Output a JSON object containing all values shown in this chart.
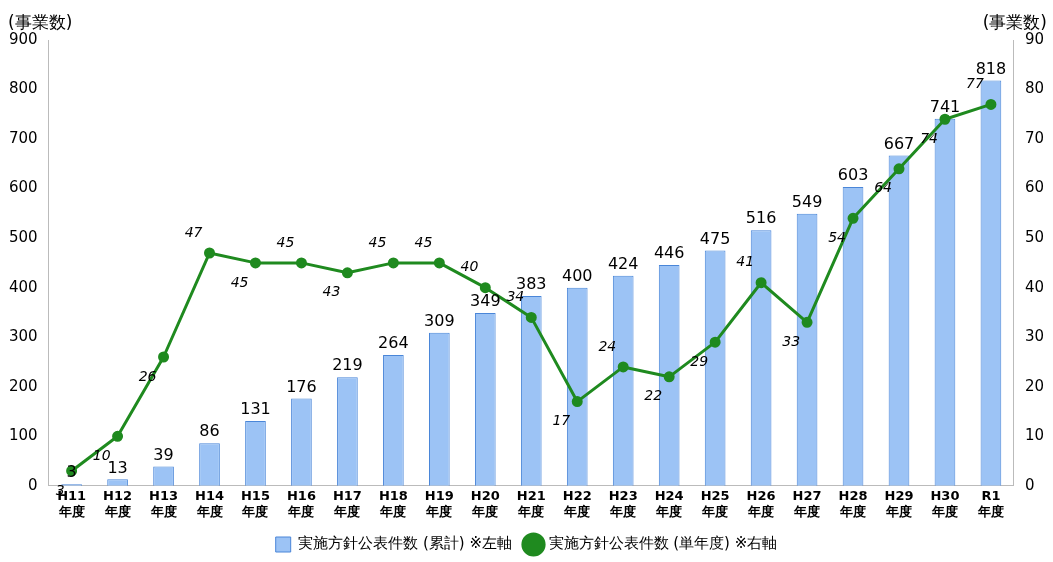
{
  "chart_data": {
    "type": "bar",
    "ylabel": "(事業数)",
    "y2label": "(事業数)",
    "categories": [
      "H11\n年度",
      "H12\n年度",
      "H13\n年度",
      "H14\n年度",
      "H15\n年度",
      "H16\n年度",
      "H17\n年度",
      "H18\n年度",
      "H19\n年度",
      "H20\n年度",
      "H21\n年度",
      "H22\n年度",
      "H23\n年度",
      "H24\n年度",
      "H25\n年度",
      "H26\n年度",
      "H27\n年度",
      "H28\n年度",
      "H29\n年度",
      "H30\n年度",
      "R1\n年度"
    ],
    "series": [
      {
        "name": "実施方針公表件数 (累計) ※左軸",
        "color": "#9cc3f5",
        "values": [
          3,
          13,
          39,
          86,
          131,
          176,
          219,
          264,
          309,
          349,
          383,
          400,
          424,
          446,
          475,
          516,
          549,
          603,
          667,
          741,
          818
        ]
      },
      {
        "name": "実施方針公表件数 (単年度) ※右軸",
        "type": "line",
        "axis": "y2",
        "color": "#1f8a1f",
        "values": [
          3,
          10,
          26,
          47,
          45,
          45,
          43,
          45,
          45,
          40,
          34,
          17,
          24,
          22,
          29,
          41,
          33,
          54,
          64,
          74,
          77
        ]
      }
    ],
    "ylim": [
      0,
      900
    ],
    "yticks": [
      0,
      100,
      200,
      300,
      400,
      500,
      600,
      700,
      800,
      900
    ],
    "y2lim": [
      0,
      90
    ],
    "y2ticks": [
      0,
      10,
      20,
      30,
      40,
      50,
      60,
      70,
      80,
      90
    ],
    "grid": false,
    "legend": "bottom",
    "marker": "circle",
    "line_style": "solid",
    "data_labels": true
  }
}
